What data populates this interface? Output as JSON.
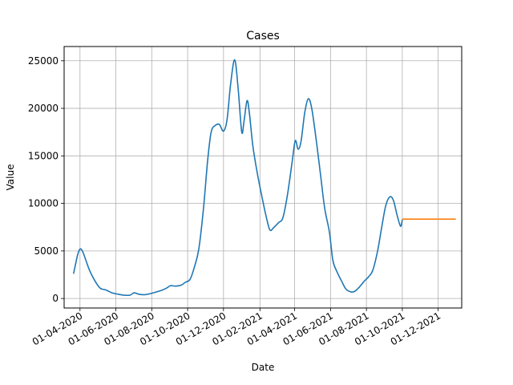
{
  "chart_data": {
    "type": "line",
    "title": "Cases",
    "xlabel": "Date",
    "ylabel": "Value",
    "xlim": [
      "2020-03-05",
      "2022-01-10"
    ],
    "ylim": [
      -1000,
      26500
    ],
    "grid": true,
    "x_ticks": [
      "2020-04-01",
      "2020-06-01",
      "2020-08-01",
      "2020-10-01",
      "2020-12-01",
      "2021-02-01",
      "2021-04-01",
      "2021-06-01",
      "2021-08-01",
      "2021-10-01",
      "2021-12-01"
    ],
    "x_tick_labels": [
      "01-04-2020",
      "01-06-2020",
      "01-08-2020",
      "01-10-2020",
      "01-12-2020",
      "01-02-2021",
      "01-04-2021",
      "01-06-2021",
      "01-08-2021",
      "01-10-2021",
      "01-12-2021"
    ],
    "y_ticks": [
      0,
      5000,
      10000,
      15000,
      20000,
      25000
    ],
    "y_tick_labels": [
      "0",
      "5000",
      "10000",
      "15000",
      "20000",
      "25000"
    ],
    "series": [
      {
        "color": "#1f77b4",
        "points": [
          [
            "2020-03-21",
            2600
          ],
          [
            "2020-03-28",
            4600
          ],
          [
            "2020-04-01",
            5200
          ],
          [
            "2020-04-05",
            5000
          ],
          [
            "2020-04-10",
            4200
          ],
          [
            "2020-04-17",
            3000
          ],
          [
            "2020-04-25",
            2000
          ],
          [
            "2020-05-05",
            1100
          ],
          [
            "2020-05-15",
            900
          ],
          [
            "2020-05-25",
            600
          ],
          [
            "2020-06-05",
            450
          ],
          [
            "2020-06-15",
            350
          ],
          [
            "2020-06-25",
            350
          ],
          [
            "2020-07-02",
            600
          ],
          [
            "2020-07-10",
            450
          ],
          [
            "2020-07-20",
            400
          ],
          [
            "2020-08-01",
            550
          ],
          [
            "2020-08-15",
            800
          ],
          [
            "2020-08-25",
            1050
          ],
          [
            "2020-09-02",
            1350
          ],
          [
            "2020-09-10",
            1300
          ],
          [
            "2020-09-20",
            1400
          ],
          [
            "2020-09-27",
            1700
          ],
          [
            "2020-10-05",
            2000
          ],
          [
            "2020-10-12",
            3200
          ],
          [
            "2020-10-20",
            5200
          ],
          [
            "2020-10-28",
            9500
          ],
          [
            "2020-11-04",
            14500
          ],
          [
            "2020-11-10",
            17500
          ],
          [
            "2020-11-17",
            18200
          ],
          [
            "2020-11-24",
            18300
          ],
          [
            "2020-12-01",
            17600
          ],
          [
            "2020-12-07",
            18800
          ],
          [
            "2020-12-13",
            22500
          ],
          [
            "2020-12-20",
            25100
          ],
          [
            "2020-12-26",
            22000
          ],
          [
            "2021-01-01",
            17500
          ],
          [
            "2021-01-05",
            18700
          ],
          [
            "2021-01-10",
            20800
          ],
          [
            "2021-01-14",
            19500
          ],
          [
            "2021-01-20",
            16000
          ],
          [
            "2021-01-28",
            13000
          ],
          [
            "2021-02-05",
            10500
          ],
          [
            "2021-02-12",
            8500
          ],
          [
            "2021-02-18",
            7200
          ],
          [
            "2021-02-25",
            7500
          ],
          [
            "2021-03-05",
            8000
          ],
          [
            "2021-03-12",
            8500
          ],
          [
            "2021-03-20",
            11000
          ],
          [
            "2021-03-28",
            14500
          ],
          [
            "2021-04-02",
            16600
          ],
          [
            "2021-04-07",
            15700
          ],
          [
            "2021-04-12",
            16600
          ],
          [
            "2021-04-18",
            19500
          ],
          [
            "2021-04-24",
            21000
          ],
          [
            "2021-04-30",
            20000
          ],
          [
            "2021-05-08",
            16500
          ],
          [
            "2021-05-15",
            13000
          ],
          [
            "2021-05-22",
            9500
          ],
          [
            "2021-05-30",
            7000
          ],
          [
            "2021-06-05",
            4000
          ],
          [
            "2021-06-12",
            2800
          ],
          [
            "2021-06-20",
            1800
          ],
          [
            "2021-06-27",
            1000
          ],
          [
            "2021-07-05",
            700
          ],
          [
            "2021-07-12",
            750
          ],
          [
            "2021-07-20",
            1200
          ],
          [
            "2021-07-28",
            1800
          ],
          [
            "2021-08-05",
            2300
          ],
          [
            "2021-08-12",
            3000
          ],
          [
            "2021-08-20",
            5000
          ],
          [
            "2021-08-27",
            7500
          ],
          [
            "2021-09-03",
            9800
          ],
          [
            "2021-09-10",
            10700
          ],
          [
            "2021-09-16",
            10300
          ],
          [
            "2021-09-22",
            8800
          ],
          [
            "2021-09-28",
            7600
          ],
          [
            "2021-10-01",
            8300
          ]
        ]
      },
      {
        "color": "#ff7f0e",
        "points": [
          [
            "2021-10-01",
            8350
          ],
          [
            "2021-12-31",
            8350
          ]
        ]
      }
    ]
  }
}
